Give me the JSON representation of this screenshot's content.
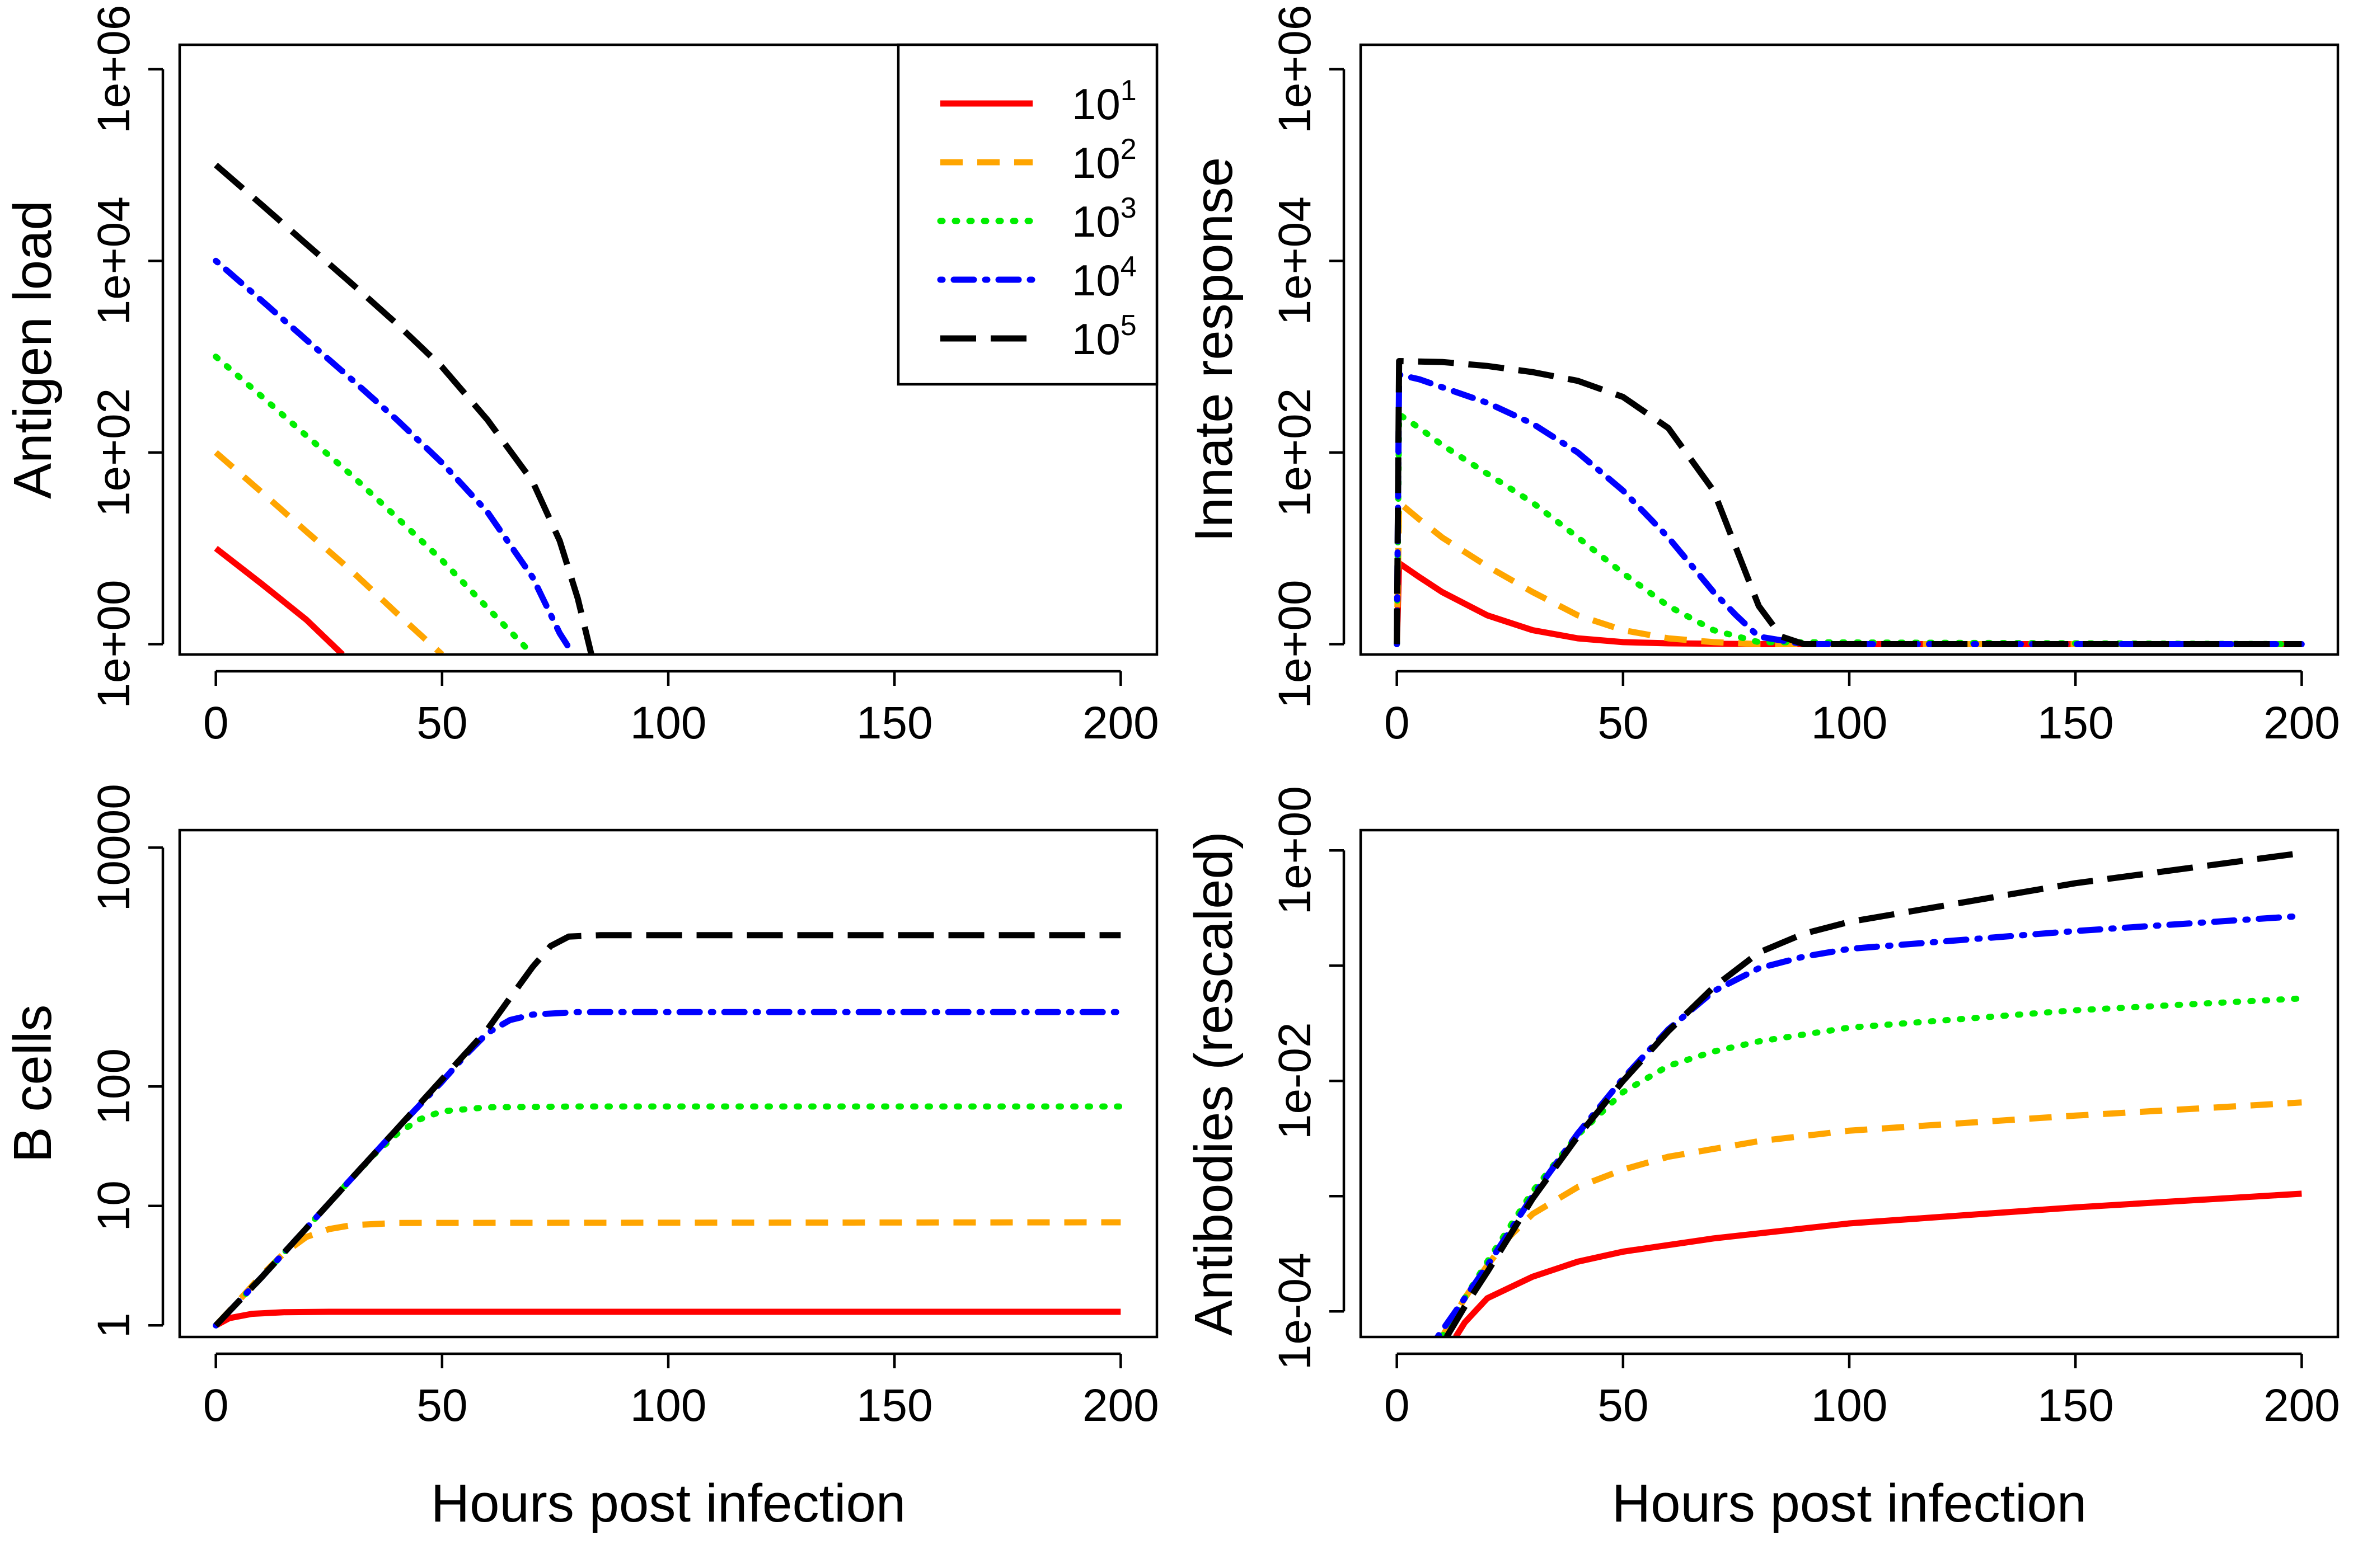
{
  "chart_data": [
    {
      "id": "antigen",
      "type": "line",
      "title": "",
      "xlabel": "",
      "ylabel": "Antigen load",
      "xlim": [
        -8,
        208
      ],
      "xticks": [
        0,
        50,
        100,
        150,
        200
      ],
      "ylog": true,
      "ylim": [
        0.78,
        1800000.0
      ],
      "yticks": [
        1,
        100,
        10000,
        1000000
      ],
      "ytick_labels": [
        "1e+00",
        "1e+02",
        "1e+04",
        "1e+06"
      ],
      "legend_position": "top-right",
      "series": [
        {
          "name": "10",
          "name_sup": "1",
          "color": "#ff0000",
          "style": "solid",
          "x": [
            0,
            10,
            20,
            28
          ],
          "y": [
            10,
            4.3,
            1.8,
            0.78
          ]
        },
        {
          "name": "10",
          "name_sup": "2",
          "color": "#ffa500",
          "style": "dashed",
          "x": [
            0,
            10,
            20,
            30,
            40,
            50
          ],
          "y": [
            100,
            39,
            15,
            5.8,
            2.1,
            0.78
          ]
        },
        {
          "name": "10",
          "name_sup": "3",
          "color": "#00ee00",
          "style": "dotted",
          "x": [
            0,
            10,
            20,
            30,
            40,
            50,
            60,
            70
          ],
          "y": [
            1000,
            390,
            150,
            58,
            21,
            7.5,
            2.4,
            0.78
          ]
        },
        {
          "name": "10",
          "name_sup": "4",
          "color": "#0000ff",
          "style": "dotdash",
          "x": [
            0,
            10,
            20,
            30,
            40,
            50,
            60,
            70,
            76,
            79
          ],
          "y": [
            10000,
            3900,
            1500,
            580,
            220,
            78,
            24,
            5,
            1.3,
            0.78
          ]
        },
        {
          "name": "10",
          "name_sup": "5",
          "color": "#000000",
          "style": "longdash",
          "x": [
            0,
            10,
            20,
            30,
            40,
            50,
            60,
            70,
            76,
            80,
            83
          ],
          "y": [
            100000,
            39000,
            15000,
            5800,
            2200,
            780,
            220,
            50,
            12,
            3,
            0.78
          ]
        }
      ]
    },
    {
      "id": "innate",
      "type": "line",
      "title": "",
      "xlabel": "",
      "ylabel": "Innate response",
      "xlim": [
        -8,
        208
      ],
      "xticks": [
        0,
        50,
        100,
        150,
        200
      ],
      "ylog": true,
      "ylim": [
        0.78,
        1800000.0
      ],
      "yticks": [
        1,
        100,
        10000,
        1000000
      ],
      "ytick_labels": [
        "1e+00",
        "1e+02",
        "1e+04",
        "1e+06"
      ],
      "series": [
        {
          "name": "10",
          "name_sup": "1",
          "color": "#ff0000",
          "style": "solid",
          "x": [
            0,
            0.5,
            5,
            10,
            20,
            30,
            40,
            50,
            60,
            80,
            200
          ],
          "y": [
            1,
            7,
            5,
            3.5,
            2,
            1.4,
            1.15,
            1.05,
            1.02,
            1,
            1
          ]
        },
        {
          "name": "10",
          "name_sup": "2",
          "color": "#ffa500",
          "style": "dashed",
          "x": [
            0,
            0.5,
            5,
            10,
            20,
            30,
            40,
            50,
            60,
            70,
            80,
            200
          ],
          "y": [
            1,
            30,
            20,
            13,
            6.5,
            3.5,
            2,
            1.4,
            1.15,
            1.05,
            1,
            1
          ]
        },
        {
          "name": "10",
          "name_sup": "3",
          "color": "#00ee00",
          "style": "dotted",
          "x": [
            0,
            0.5,
            5,
            10,
            20,
            30,
            40,
            50,
            60,
            70,
            80,
            200
          ],
          "y": [
            1,
            250,
            180,
            120,
            60,
            30,
            13,
            5.5,
            2.5,
            1.4,
            1.05,
            1
          ]
        },
        {
          "name": "10",
          "name_sup": "4",
          "color": "#0000ff",
          "style": "dotdash",
          "x": [
            0,
            0.5,
            5,
            10,
            20,
            30,
            40,
            50,
            60,
            70,
            75,
            80,
            90,
            200
          ],
          "y": [
            1,
            650,
            580,
            480,
            330,
            200,
            100,
            40,
            13,
            3.5,
            2,
            1.2,
            1,
            1
          ]
        },
        {
          "name": "10",
          "name_sup": "5",
          "color": "#000000",
          "style": "longdash",
          "x": [
            0,
            0.5,
            10,
            20,
            30,
            40,
            50,
            60,
            70,
            75,
            80,
            85,
            90,
            200
          ],
          "y": [
            1,
            900,
            880,
            800,
            690,
            560,
            380,
            180,
            40,
            10,
            2.5,
            1.2,
            1,
            1
          ]
        }
      ]
    },
    {
      "id": "bcells",
      "type": "line",
      "title": "",
      "xlabel": "Hours post infection",
      "ylabel": "B cells",
      "xlim": [
        -8,
        208
      ],
      "xticks": [
        0,
        50,
        100,
        150,
        200
      ],
      "ylog": true,
      "ylim": [
        0.8,
        14000
      ],
      "yticks": [
        1,
        10,
        100,
        10000
      ],
      "ytick_labels": [
        "1",
        "10",
        "100",
        "10000"
      ],
      "series": [
        {
          "name": "10",
          "name_sup": "1",
          "color": "#ff0000",
          "style": "solid",
          "x": [
            0,
            3,
            8,
            15,
            25,
            40,
            200
          ],
          "y": [
            1,
            1.15,
            1.25,
            1.29,
            1.3,
            1.3,
            1.3
          ]
        },
        {
          "name": "10",
          "name_sup": "2",
          "color": "#ffa500",
          "style": "dashed",
          "x": [
            0,
            5,
            10,
            15,
            20,
            25,
            30,
            40,
            200
          ],
          "y": [
            1,
            1.6,
            2.6,
            4,
            5.5,
            6.4,
            6.9,
            7.2,
            7.3
          ]
        },
        {
          "name": "10",
          "name_sup": "3",
          "color": "#00ee00",
          "style": "dotted",
          "x": [
            0,
            10,
            20,
            30,
            35,
            40,
            45,
            50,
            60,
            80,
            200
          ],
          "y": [
            1,
            2.5,
            6.5,
            17,
            27,
            40,
            53,
            62,
            67,
            68,
            68
          ]
        },
        {
          "name": "10",
          "name_sup": "4",
          "color": "#0000ff",
          "style": "dotdash",
          "x": [
            0,
            10,
            20,
            30,
            40,
            50,
            55,
            60,
            65,
            70,
            80,
            200
          ],
          "y": [
            1,
            2.5,
            6.5,
            17,
            44,
            110,
            180,
            280,
            360,
            400,
            420,
            420
          ]
        },
        {
          "name": "10",
          "name_sup": "5",
          "color": "#000000",
          "style": "longdash",
          "x": [
            0,
            10,
            20,
            30,
            40,
            50,
            60,
            65,
            70,
            74,
            78,
            85,
            200
          ],
          "y": [
            1,
            2.5,
            6.5,
            17,
            44,
            115,
            300,
            550,
            1000,
            1500,
            1800,
            1850,
            1850
          ]
        }
      ]
    },
    {
      "id": "antibodies",
      "type": "line",
      "title": "",
      "xlabel": "Hours post infection",
      "ylabel": "Antibodies (rescaled)",
      "xlim": [
        -8,
        208
      ],
      "xticks": [
        0,
        50,
        100,
        150,
        200
      ],
      "ylog": true,
      "ylim": [
        6e-05,
        1.5
      ],
      "yticks": [
        0.0001,
        0.001,
        0.01,
        0.1,
        1
      ],
      "ytick_labels": [
        "1e-04",
        "",
        "1e-02",
        "",
        "1e+00"
      ],
      "series": [
        {
          "name": "10",
          "name_sup": "1",
          "color": "#ff0000",
          "style": "solid",
          "x": [
            13,
            15,
            20,
            30,
            40,
            50,
            70,
            100,
            150,
            200
          ],
          "y": [
            6e-05,
            8e-05,
            0.00013,
            0.0002,
            0.00027,
            0.00033,
            0.00043,
            0.00058,
            0.0008,
            0.00105
          ]
        },
        {
          "name": "10",
          "name_sup": "2",
          "color": "#ffa500",
          "style": "dashed",
          "x": [
            10,
            15,
            20,
            25,
            30,
            40,
            50,
            60,
            80,
            100,
            150,
            200
          ],
          "y": [
            6e-05,
            0.00013,
            0.00025,
            0.00045,
            0.0007,
            0.0012,
            0.0017,
            0.0022,
            0.003,
            0.0037,
            0.005,
            0.0065
          ]
        },
        {
          "name": "10",
          "name_sup": "3",
          "color": "#00ee00",
          "style": "dotted",
          "x": [
            10,
            15,
            20,
            30,
            40,
            50,
            60,
            70,
            80,
            100,
            150,
            200
          ],
          "y": [
            6e-05,
            0.00013,
            0.00027,
            0.0011,
            0.0034,
            0.008,
            0.0135,
            0.018,
            0.022,
            0.029,
            0.041,
            0.052
          ]
        },
        {
          "name": "10",
          "name_sup": "4",
          "color": "#0000ff",
          "style": "dotdash",
          "x": [
            9,
            15,
            20,
            30,
            40,
            50,
            60,
            70,
            80,
            90,
            100,
            150,
            200
          ],
          "y": [
            6e-05,
            0.00013,
            0.00025,
            0.001,
            0.0035,
            0.0105,
            0.028,
            0.06,
            0.095,
            0.12,
            0.14,
            0.2,
            0.27
          ]
        },
        {
          "name": "10",
          "name_sup": "5",
          "color": "#000000",
          "style": "longdash",
          "x": [
            11,
            15,
            20,
            30,
            40,
            50,
            60,
            70,
            80,
            90,
            100,
            150,
            200
          ],
          "y": [
            6e-05,
            0.00011,
            0.00022,
            0.00095,
            0.0033,
            0.01,
            0.027,
            0.065,
            0.13,
            0.19,
            0.24,
            0.52,
            0.95
          ]
        }
      ]
    }
  ]
}
